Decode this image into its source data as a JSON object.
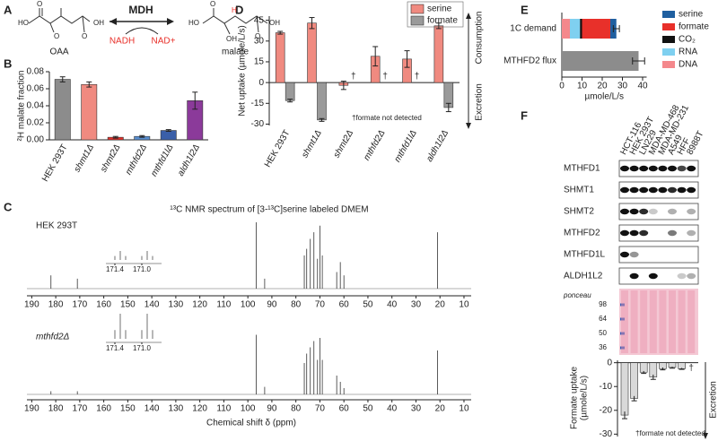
{
  "panel_labels": [
    "A",
    "B",
    "C",
    "D",
    "E",
    "F"
  ],
  "diagram": {
    "enzyme": "MDH",
    "substrate": "OAA",
    "product": "malate",
    "cofactor_in": "NADH",
    "cofactor_out": "NAD+",
    "atoms": [
      "HO",
      "O",
      "O",
      "O",
      "OH",
      "HO",
      "O",
      "H",
      "OH",
      "O",
      "OH"
    ]
  },
  "chart_data": [
    {
      "type": "bar",
      "y_label": "²H malate fraction",
      "categories": [
        "HEK 293T",
        "shmt1Δ",
        "shmt2Δ",
        "mthfd2Δ",
        "mthfd1lΔ",
        "aldh1l2Δ"
      ],
      "values": [
        0.071,
        0.065,
        0.003,
        0.004,
        0.011,
        0.046
      ],
      "errors": [
        0.003,
        0.003,
        0.001,
        0.001,
        0.001,
        0.01
      ],
      "colors": [
        "#8c8c8c",
        "#f08a80",
        "#e8302a",
        "#5a8fd0",
        "#3a5fa8",
        "#8b3a9a"
      ],
      "ylim": [
        0,
        0.08
      ],
      "yticks": [
        {
          "value": 0,
          "label": "0.00"
        },
        0.02,
        0.04,
        0.06,
        0.08
      ]
    },
    {
      "type": "bar",
      "y_label": "Net uptake (µmole/L/s)",
      "categories": [
        "HEK 293T",
        "shmt1Δ",
        "shmt2Δ",
        "mthfd2Δ",
        "mthfd1lΔ",
        "aldh1l2Δ"
      ],
      "series": [
        {
          "name": "serine",
          "color": "#f08a80",
          "values": [
            36,
            43,
            -2,
            19,
            17,
            41
          ],
          "errors": [
            1,
            4,
            3,
            7,
            6,
            2
          ]
        },
        {
          "name": "formate",
          "color": "#9a9a9a",
          "values": [
            -13,
            -27,
            null,
            null,
            null,
            -18
          ],
          "errors": [
            1,
            1,
            null,
            null,
            null,
            3
          ],
          "value_labels": [
            null,
            null,
            "†",
            "†",
            "†",
            null
          ]
        }
      ],
      "ylim": [
        -31,
        48
      ],
      "yticks": [
        -30,
        -15,
        0,
        15,
        30,
        45
      ],
      "annotations": {
        "top": "Consumption",
        "bottom": "Excretion",
        "footnote": "†formate not detected"
      }
    },
    {
      "type": "stacked_barh",
      "categories": [
        "1C demand",
        "MTHFD2 flux"
      ],
      "x_label": "µmole/L/s",
      "series": [
        {
          "name": "DNA",
          "color": "#f4888c",
          "values": [
            4,
            null
          ]
        },
        {
          "name": "RNA",
          "color": "#7fd0f0",
          "values": [
            5,
            null
          ]
        },
        {
          "name": "CO₂",
          "color": "#111111",
          "values": [
            1,
            null
          ]
        },
        {
          "name": "formate",
          "color": "#e8302a",
          "values": [
            14,
            null
          ]
        },
        {
          "name": "serine",
          "color": "#1f5fa0",
          "values": [
            3,
            null
          ],
          "errors": [
            1.5,
            null
          ]
        },
        {
          "color": "#8c8c8c",
          "values": [
            null,
            38
          ],
          "errors": [
            null,
            3
          ]
        }
      ],
      "xlim": [
        0,
        42
      ],
      "xticks": [
        0,
        10,
        20,
        30,
        40
      ]
    },
    {
      "type": "bar",
      "y_label": [
        "Formate uptake",
        "(µmole/L/s)"
      ],
      "categories": [
        "HCT-116",
        "HEK 293T",
        "LN229",
        "MDA-MD-468",
        "MDA-MD-231",
        "A549",
        "HFF",
        "8988T"
      ],
      "values": [
        -22,
        -15,
        -4,
        -6,
        -2.5,
        -2,
        -2.5,
        null
      ],
      "errors": [
        1.5,
        1,
        0.5,
        1,
        0.5,
        0.3,
        0.3,
        null
      ],
      "value_labels": [
        null,
        null,
        null,
        null,
        null,
        null,
        null,
        "†"
      ],
      "color": "#d9d9d9",
      "ylim": [
        -31,
        1
      ],
      "yticks": [
        0,
        -10,
        -20,
        -30
      ],
      "annotations": {
        "bottom": "Excretion",
        "footnote": "†formate not detected"
      }
    },
    {
      "type": "spectrum",
      "title": "¹³C NMR spectrum of [3-¹³C]serine labeled DMEM",
      "x_label": "Chemical shift δ (ppm)",
      "x": [
        182,
        171,
        96.5,
        93,
        76.5,
        75.5,
        74,
        72.5,
        71,
        70,
        69,
        63,
        61.5,
        60,
        21
      ],
      "series": [
        {
          "name": "HEK 293T",
          "color": "#333333",
          "values": [
            0.2,
            0.15,
            1,
            0.15,
            0.5,
            0.6,
            0.75,
            0.85,
            0.45,
            0.95,
            0.5,
            0.25,
            0.4,
            0.2,
            0.85
          ]
        },
        {
          "name": "mthfd2Δ",
          "color": "#333333",
          "values": [
            0.05,
            0.05,
            0.95,
            0.12,
            0.5,
            0.65,
            0.75,
            0.85,
            0.55,
            0.9,
            0.55,
            0.3,
            0.2,
            0.1,
            0.7
          ]
        }
      ],
      "xlim": [
        192,
        7
      ],
      "xticks": [
        190,
        180,
        170,
        160,
        150,
        140,
        130,
        120,
        110,
        100,
        90,
        80,
        70,
        60,
        50,
        40,
        30,
        20,
        10
      ],
      "inset_ticks": [
        171.4,
        {
          "value": 171,
          "label": "171.0"
        }
      ]
    }
  ],
  "blot": {
    "proteins": [
      "MTHFD1",
      "SHMT1",
      "SHMT2",
      "MTHFD2",
      "MTHFD1L",
      "ALDH1L2"
    ],
    "stain": "ponceau",
    "ladder": [
      "98",
      "64",
      "50",
      "36"
    ]
  }
}
